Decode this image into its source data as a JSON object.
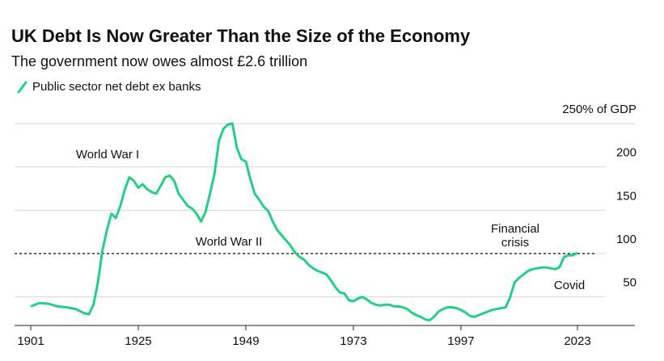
{
  "chart_data": {
    "type": "line",
    "title": "UK Debt Is Now Greater Than the Size of the Economy",
    "subtitle": "The government now owes almost £2.6 trillion",
    "series": [
      {
        "name": "Public sector net debt ex banks",
        "color": "#23d083",
        "x": [
          1901,
          1903,
          1905,
          1907,
          1909,
          1911,
          1913,
          1914,
          1915,
          1916,
          1917,
          1918,
          1919,
          1920,
          1921,
          1922,
          1923,
          1924,
          1925,
          1926,
          1927,
          1928,
          1929,
          1930,
          1931,
          1932,
          1933,
          1934,
          1935,
          1936,
          1937,
          1938,
          1939,
          1940,
          1941,
          1942,
          1943,
          1944,
          1945,
          1946,
          1947,
          1948,
          1949,
          1950,
          1951,
          1952,
          1953,
          1954,
          1955,
          1956,
          1957,
          1958,
          1959,
          1960,
          1961,
          1962,
          1963,
          1964,
          1965,
          1966,
          1967,
          1968,
          1969,
          1970,
          1971,
          1972,
          1973,
          1974,
          1975,
          1976,
          1977,
          1978,
          1979,
          1980,
          1981,
          1982,
          1983,
          1984,
          1985,
          1986,
          1987,
          1988,
          1989,
          1990,
          1991,
          1992,
          1993,
          1994,
          1995,
          1996,
          1997,
          1998,
          1999,
          2000,
          2001,
          2002,
          2003,
          2004,
          2005,
          2006,
          2007,
          2008,
          2009,
          2010,
          2011,
          2012,
          2013,
          2014,
          2015,
          2016,
          2017,
          2018,
          2019,
          2020,
          2021,
          2022,
          2023
        ],
        "values": [
          39,
          43,
          42,
          39,
          38,
          36,
          31,
          30,
          41,
          67,
          104,
          127,
          146,
          141,
          155,
          174,
          188,
          184,
          176,
          180,
          174,
          171,
          169,
          178,
          188,
          190,
          184,
          169,
          162,
          155,
          152,
          146,
          137,
          148,
          169,
          192,
          230,
          244,
          249,
          250,
          222,
          209,
          206,
          186,
          169,
          162,
          154,
          149,
          137,
          127,
          121,
          115,
          109,
          101,
          96,
          93,
          87,
          83,
          80,
          78,
          76,
          69,
          61,
          55,
          54,
          46,
          45,
          48,
          50,
          47,
          43,
          41,
          40,
          41,
          41,
          39,
          39,
          38,
          36,
          32,
          29,
          27,
          24,
          23,
          27,
          33,
          36,
          38,
          38,
          37,
          35,
          32,
          28,
          27,
          29,
          31,
          33,
          35,
          36,
          37,
          38,
          50,
          67,
          72,
          76,
          80,
          82,
          83,
          84,
          84,
          83,
          82,
          84,
          96,
          98,
          98,
          101
        ]
      }
    ],
    "xlim": [
      1897,
      2029
    ],
    "xticks": [
      1901,
      1925,
      1949,
      1973,
      1997,
      2023
    ],
    "ylim": [
      17,
      250
    ],
    "yticks": [
      50,
      100,
      150,
      200,
      {
        "value": 250,
        "label": "250% of GDP"
      }
    ],
    "grid": true,
    "reference_line": 100,
    "annotations": [
      "World War I",
      "World War II",
      "Financial",
      "crisis",
      "Covid"
    ]
  }
}
